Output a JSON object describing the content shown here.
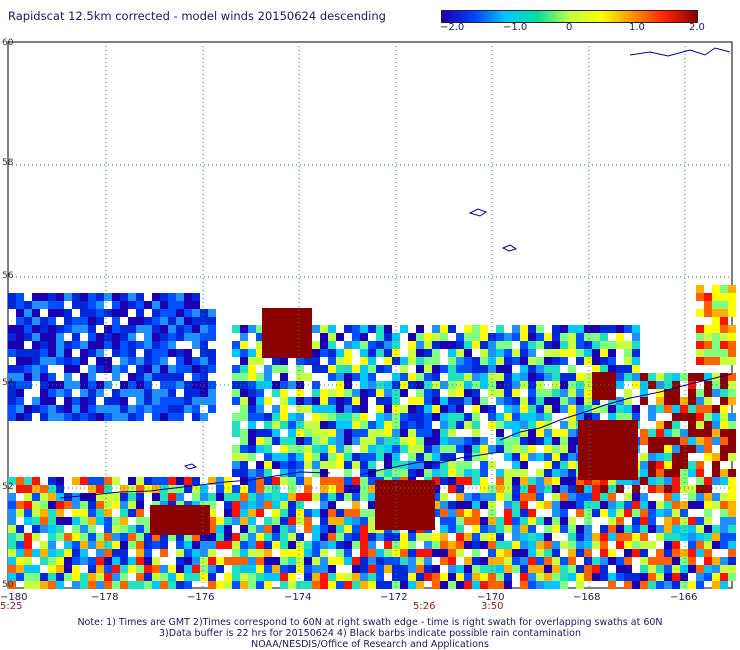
{
  "title": "Rapidscat 12.5km corrected - model winds 20150624 descending",
  "colorbar": {
    "ticks": [
      "−2.0",
      "−1.0",
      "0",
      "1.0",
      "2.0"
    ],
    "min": -2.0,
    "max": 2.0,
    "colors": [
      "#1a00b0",
      "#0040ff",
      "#00c8ff",
      "#00e0a0",
      "#c0ff40",
      "#ffff00",
      "#ff9000",
      "#ff2000",
      "#8b0000"
    ]
  },
  "map": {
    "lon_range": [
      -180,
      -165
    ],
    "lat_range": [
      50,
      60
    ],
    "lat_ticks": [
      "60",
      "58",
      "56",
      "54",
      "52",
      "50"
    ],
    "lon_ticks": [
      "−180",
      "−178",
      "−176",
      "−174",
      "−172",
      "−170",
      "−168",
      "−166"
    ],
    "time_labels": [
      "5:25",
      "5:26",
      "3:50"
    ],
    "coast_color": "#00008b",
    "grid_color": "#2e8b57"
  },
  "notes": [
    "Note: 1) Times are GMT 2)Times correspond to 60N at right swath edge - time is right swath for overlapping swaths at 60N",
    "3)Data buffer is 22 hrs for 20150624 4) Black barbs indicate possible rain contamination",
    "NOAA/NESDIS/Office of Research and Applications"
  ]
}
